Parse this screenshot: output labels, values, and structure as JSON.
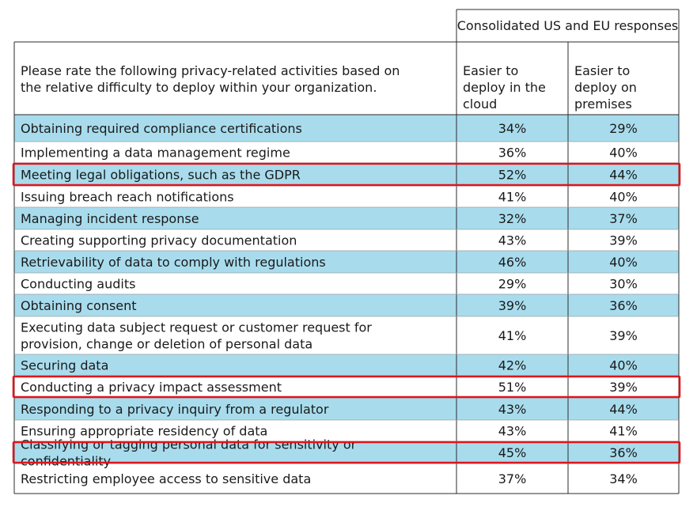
{
  "table": {
    "group_header": "Consolidated US and EU responses",
    "question_header": "Please rate the following privacy-related activities based on the relative difficulty to deploy within your organization.",
    "col1_header": "Easier to deploy in the cloud",
    "col2_header": "Easier to deploy on premises"
  },
  "colors": {
    "shaded_row": "#a8dced",
    "grid": "#2b2b2b",
    "highlight_border": "#e0141b"
  },
  "chart_data": {
    "type": "table",
    "columns": [
      "Easier to deploy in the cloud",
      "Easier to deploy on premises"
    ],
    "rows": [
      {
        "activity": "Obtaining required compliance certifications",
        "cloud": "34%",
        "premises": "29%",
        "shaded": true,
        "highlighted": false
      },
      {
        "activity": "Implementing a data management regime",
        "cloud": "36%",
        "premises": "40%",
        "shaded": false,
        "highlighted": false
      },
      {
        "activity": "Meeting legal obligations, such as the GDPR",
        "cloud": "52%",
        "premises": "44%",
        "shaded": true,
        "highlighted": true
      },
      {
        "activity": "Issuing breach reach notifications",
        "cloud": "41%",
        "premises": "40%",
        "shaded": false,
        "highlighted": false
      },
      {
        "activity": "Managing incident response",
        "cloud": "32%",
        "premises": "37%",
        "shaded": true,
        "highlighted": false
      },
      {
        "activity": "Creating supporting privacy documentation",
        "cloud": "43%",
        "premises": "39%",
        "shaded": false,
        "highlighted": false
      },
      {
        "activity": "Retrievability of data to comply with regulations",
        "cloud": "46%",
        "premises": "40%",
        "shaded": true,
        "highlighted": false
      },
      {
        "activity": "Conducting audits",
        "cloud": "29%",
        "premises": "30%",
        "shaded": false,
        "highlighted": false
      },
      {
        "activity": "Obtaining consent",
        "cloud": "39%",
        "premises": "36%",
        "shaded": true,
        "highlighted": false
      },
      {
        "activity": "Executing data subject request or customer request for provision, change or deletion of personal data",
        "cloud": "41%",
        "premises": "39%",
        "shaded": false,
        "highlighted": false
      },
      {
        "activity": "Securing data",
        "cloud": "42%",
        "premises": "40%",
        "shaded": true,
        "highlighted": false
      },
      {
        "activity": "Conducting a privacy impact assessment",
        "cloud": "51%",
        "premises": "39%",
        "shaded": false,
        "highlighted": true
      },
      {
        "activity": "Responding to a privacy inquiry from a regulator",
        "cloud": "43%",
        "premises": "44%",
        "shaded": true,
        "highlighted": false
      },
      {
        "activity": "Ensuring appropriate residency of data",
        "cloud": "43%",
        "premises": "41%",
        "shaded": false,
        "highlighted": false
      },
      {
        "activity": "Classifying or tagging personal data for sensitivity or confidentiality",
        "cloud": "45%",
        "premises": "36%",
        "shaded": true,
        "highlighted": true
      },
      {
        "activity": "Restricting employee access to sensitive data",
        "cloud": "37%",
        "premises": "34%",
        "shaded": false,
        "highlighted": false
      }
    ]
  }
}
